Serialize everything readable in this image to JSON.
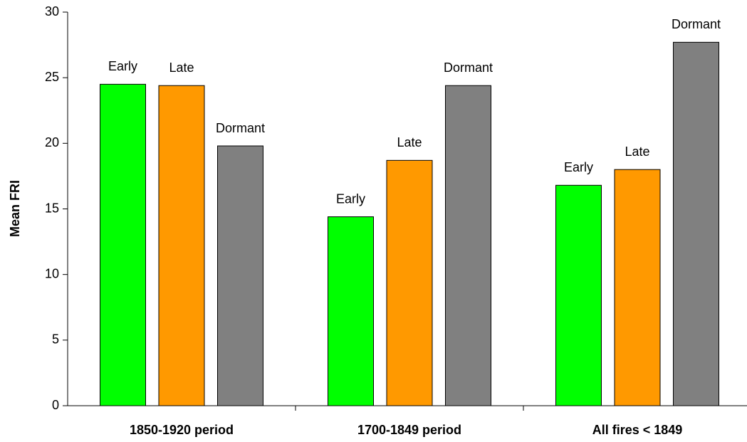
{
  "chart_data": {
    "type": "bar",
    "y_label": "Mean FRI",
    "categories": [
      "1850-1920 period",
      "1700-1849 period",
      "All fires < 1849"
    ],
    "series": [
      {
        "name": "Early",
        "color": "#00ff00",
        "values": [
          24.5,
          14.4,
          16.8
        ]
      },
      {
        "name": "Late",
        "color": "#ff9900",
        "values": [
          24.4,
          18.7,
          18.0
        ]
      },
      {
        "name": "Dormant",
        "color": "#808080",
        "values": [
          19.8,
          24.4,
          27.7
        ]
      }
    ],
    "ylim": [
      0,
      30
    ],
    "yticks": [
      0,
      5,
      10,
      15,
      20,
      25,
      30
    ],
    "grid": false
  }
}
